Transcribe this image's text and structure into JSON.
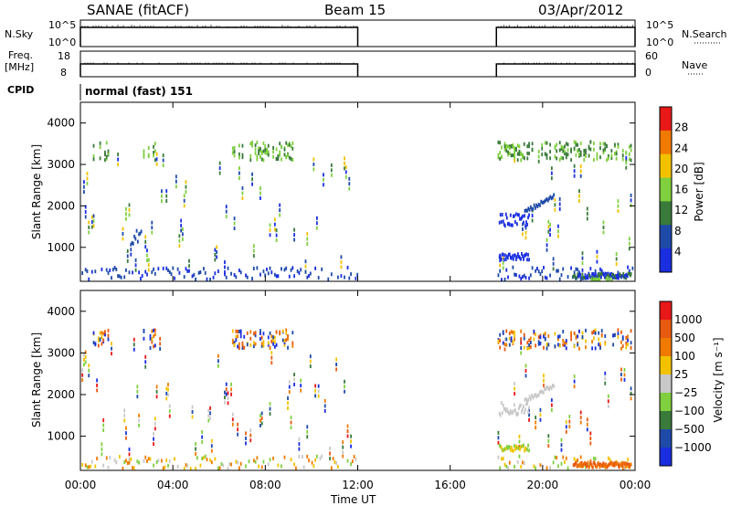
{
  "header": {
    "title": "SANAE (fitACF)",
    "beam": "Beam 15",
    "date": "03/Apr/2012"
  },
  "info_panels": {
    "nsky_label": "N.Sky",
    "nsky_ticks": [
      "10^5",
      "10^0"
    ],
    "nsearch_label": "N.Search",
    "nsearch_ticks": [
      "10^5",
      "10^0"
    ],
    "freq_label_1": "Freq.",
    "freq_label_2": "[MHz]",
    "freq_ticks": [
      "18",
      "8"
    ],
    "nave_label": "Nave",
    "nave_ticks": [
      "60",
      "0"
    ],
    "cpid_label": "CPID",
    "cpid_text": "normal (fast) 151"
  },
  "chart_data": [
    {
      "type": "heatmap",
      "name": "power",
      "ylabel": "Slant Range [km]",
      "xlabel": "",
      "ylim": [
        180,
        4500
      ],
      "yticks": [
        "4000",
        "3000",
        "2000",
        "1000"
      ],
      "colorbar_label": "Power [dB]",
      "colorbar_ticks": [
        "28",
        "24",
        "20",
        "16",
        "12",
        "8",
        "4"
      ],
      "colors": [
        "#1a2ee0",
        "#1e4aa8",
        "#3a7a3a",
        "#7fcf3f",
        "#f2c200",
        "#f07a00",
        "#e81818"
      ],
      "data_windows_hours": [
        [
          0,
          12
        ],
        [
          18,
          24
        ]
      ]
    },
    {
      "type": "heatmap",
      "name": "velocity",
      "ylabel": "Slant Range [km]",
      "xlabel": "Time UT",
      "ylim": [
        180,
        4500
      ],
      "yticks": [
        "4000",
        "3000",
        "2000",
        "1000"
      ],
      "colorbar_label": "Velocity [m s⁻¹]",
      "colorbar_ticks": [
        "1000",
        "500",
        "100",
        "25",
        "−25",
        "−100",
        "−500",
        "−1000"
      ],
      "colors": [
        "#1a2ee0",
        "#1e4aa8",
        "#3a7a3a",
        "#7fcf3f",
        "#c8c8c8",
        "#f2c200",
        "#f07a00",
        "#e85a10",
        "#e81818"
      ],
      "xticks": [
        "00:00",
        "04:00",
        "08:00",
        "12:00",
        "16:00",
        "20:00",
        "00:00"
      ],
      "data_windows_hours": [
        [
          0,
          12
        ],
        [
          18,
          24
        ]
      ]
    }
  ]
}
